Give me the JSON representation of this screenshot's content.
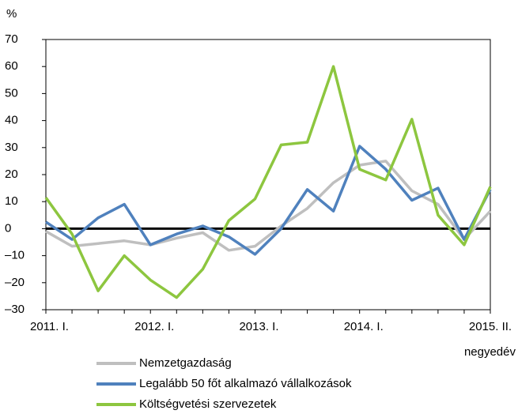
{
  "chart_data": {
    "type": "line",
    "y_unit": "%",
    "x_label": "negyedév",
    "categories": [
      "2011. I.",
      null,
      null,
      null,
      "2012. I.",
      null,
      null,
      null,
      "2013. I.",
      null,
      null,
      null,
      "2014. I.",
      null,
      null,
      null,
      null,
      "2015. II."
    ],
    "series": [
      {
        "name": "Nemzetgazdaság",
        "color": "#bfbfbf",
        "values": [
          -1,
          -6.5,
          -5.5,
          -4.5,
          -6,
          -3.5,
          -1.5,
          -8,
          -6.5,
          1,
          7.5,
          17,
          23.5,
          25,
          14,
          9,
          -4,
          6.5
        ]
      },
      {
        "name": "Legalább 50 főt alkalmazó vállalkozások",
        "color": "#4f81bd",
        "values": [
          2.5,
          -4,
          4,
          9,
          -6,
          -2,
          1,
          -3,
          -9.5,
          0,
          14.5,
          6.5,
          30.5,
          22,
          10.5,
          15,
          -4,
          14.5
        ]
      },
      {
        "name": "Költségvetési szervezetek",
        "color": "#8dc63f",
        "values": [
          11.5,
          -2,
          -23,
          -10,
          -19,
          -25.5,
          -15,
          3,
          11,
          31,
          32,
          60,
          22,
          18,
          40.5,
          5,
          -6,
          15.5
        ]
      }
    ],
    "ylim": [
      -30,
      70
    ],
    "yticks": [
      {
        "value": -30,
        "label": "–30"
      },
      {
        "value": -20,
        "label": "–20"
      },
      {
        "value": -10,
        "label": "–10"
      },
      0,
      10,
      20,
      30,
      40,
      50,
      60,
      70
    ],
    "grid": false
  }
}
